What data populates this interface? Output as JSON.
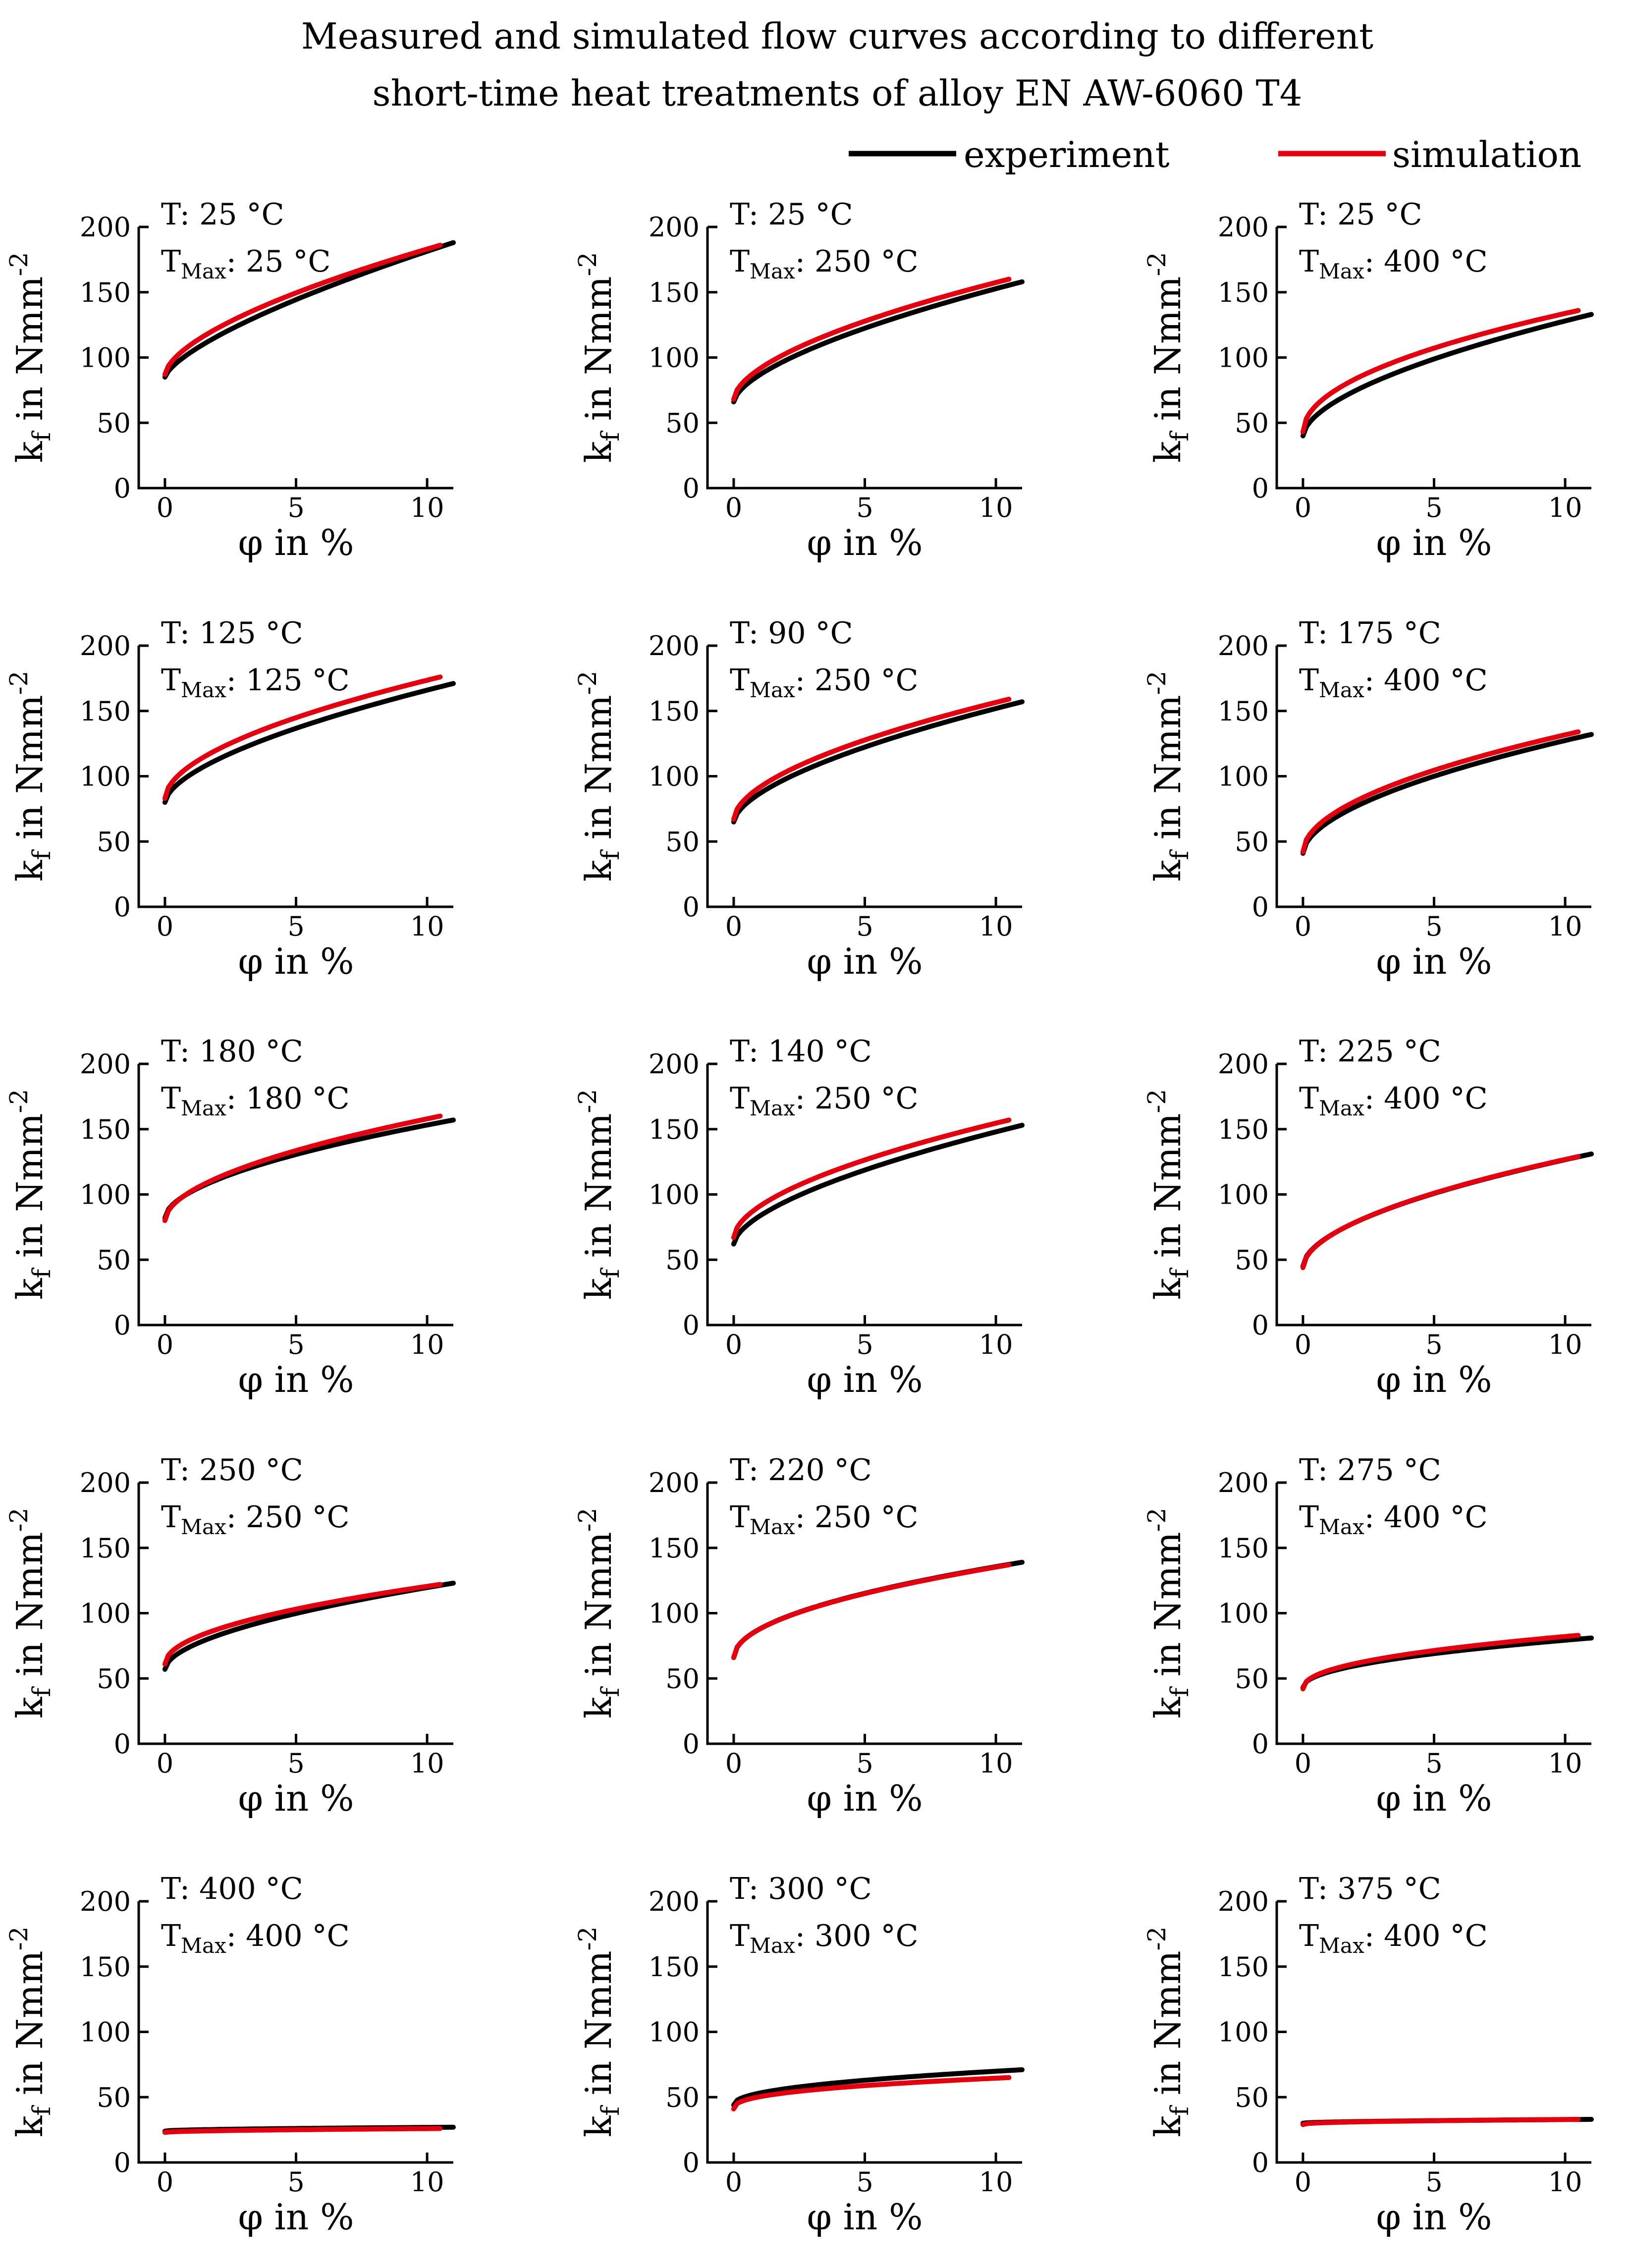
{
  "chart_data": {
    "type": "line",
    "title": [
      "Measured and simulated flow curves according to different",
      "short-time heat treatments of alloy EN AW-6060 T4"
    ],
    "legend": [
      {
        "name": "experiment",
        "color": "#000000"
      },
      {
        "name": "simulation",
        "color": "#e3000f"
      }
    ],
    "legend_position": "top-right",
    "xlabel": "φ in %",
    "ylabel": {
      "base": "k",
      "sub": "f",
      "text": " in Nmm",
      "sup": "-2"
    },
    "x_ticks": [
      "0",
      "5",
      "10"
    ],
    "y_ticks": [
      "0",
      "50",
      "100",
      "150",
      "200"
    ],
    "xlim": [
      -1,
      11
    ],
    "ylim": [
      0,
      200
    ],
    "grid": false,
    "rows": 5,
    "cols": 3,
    "panels": [
      {
        "T_label": "T: 25 °C",
        "tmax_prefix": "T",
        "tmax_sub": "Max",
        "tmax_value": ": 25 °C",
        "experiment": {
          "y0": 85,
          "y_end": 188,
          "x_end": 11,
          "shape": 0.7
        },
        "simulation": {
          "y0": 87,
          "y_end": 186,
          "x_end": 10.5,
          "shape": 0.62
        }
      },
      {
        "T_label": "T: 25 °C",
        "tmax_prefix": "T",
        "tmax_sub": "Max",
        "tmax_value": ": 250 °C",
        "experiment": {
          "y0": 66,
          "y_end": 158,
          "x_end": 11,
          "shape": 0.62
        },
        "simulation": {
          "y0": 68,
          "y_end": 160,
          "x_end": 10.5,
          "shape": 0.58
        }
      },
      {
        "T_label": "T: 25 °C",
        "tmax_prefix": "T",
        "tmax_sub": "Max",
        "tmax_value": ": 400 °C",
        "experiment": {
          "y0": 40,
          "y_end": 133,
          "x_end": 11,
          "shape": 0.58
        },
        "simulation": {
          "y0": 43,
          "y_end": 136,
          "x_end": 10.5,
          "shape": 0.5
        }
      },
      {
        "T_label": "T: 125 °C",
        "tmax_prefix": "T",
        "tmax_sub": "Max",
        "tmax_value": ": 125 °C",
        "experiment": {
          "y0": 80,
          "y_end": 171,
          "x_end": 11,
          "shape": 0.6
        },
        "simulation": {
          "y0": 83,
          "y_end": 176,
          "x_end": 10.5,
          "shape": 0.55
        }
      },
      {
        "T_label": "T: 90 °C",
        "tmax_prefix": "T",
        "tmax_sub": "Max",
        "tmax_value": ": 250 °C",
        "experiment": {
          "y0": 65,
          "y_end": 157,
          "x_end": 11,
          "shape": 0.6
        },
        "simulation": {
          "y0": 67,
          "y_end": 159,
          "x_end": 10.5,
          "shape": 0.56
        }
      },
      {
        "T_label": "T: 175 °C",
        "tmax_prefix": "T",
        "tmax_sub": "Max",
        "tmax_value": ": 400 °C",
        "experiment": {
          "y0": 41,
          "y_end": 132,
          "x_end": 11,
          "shape": 0.55
        },
        "simulation": {
          "y0": 42,
          "y_end": 134,
          "x_end": 10.5,
          "shape": 0.52
        }
      },
      {
        "T_label": "T: 180 °C",
        "tmax_prefix": "T",
        "tmax_sub": "Max",
        "tmax_value": ": 180 °C",
        "experiment": {
          "y0": 82,
          "y_end": 157,
          "x_end": 11,
          "shape": 0.55
        },
        "simulation": {
          "y0": 80,
          "y_end": 160,
          "x_end": 10.5,
          "shape": 0.54
        }
      },
      {
        "T_label": "T: 140 °C",
        "tmax_prefix": "T",
        "tmax_sub": "Max",
        "tmax_value": ": 250 °C",
        "experiment": {
          "y0": 62,
          "y_end": 153,
          "x_end": 11,
          "shape": 0.6
        },
        "simulation": {
          "y0": 67,
          "y_end": 157,
          "x_end": 10.5,
          "shape": 0.56
        }
      },
      {
        "T_label": "T: 225 °C",
        "tmax_prefix": "T",
        "tmax_sub": "Max",
        "tmax_value": ": 400 °C",
        "experiment": {
          "y0": 45,
          "y_end": 131,
          "x_end": 11,
          "shape": 0.55
        },
        "simulation": {
          "y0": 44,
          "y_end": 129,
          "x_end": 10.5,
          "shape": 0.54
        }
      },
      {
        "T_label": "T: 250 °C",
        "tmax_prefix": "T",
        "tmax_sub": "Max",
        "tmax_value": ": 250 °C",
        "experiment": {
          "y0": 57,
          "y_end": 123,
          "x_end": 11,
          "shape": 0.55
        },
        "simulation": {
          "y0": 61,
          "y_end": 122,
          "x_end": 10.5,
          "shape": 0.5
        }
      },
      {
        "T_label": "T: 220 °C",
        "tmax_prefix": "T",
        "tmax_sub": "Max",
        "tmax_value": ": 250 °C",
        "experiment": {
          "y0": 66,
          "y_end": 139,
          "x_end": 11,
          "shape": 0.5
        },
        "simulation": {
          "y0": 66,
          "y_end": 137,
          "x_end": 10.5,
          "shape": 0.5
        }
      },
      {
        "T_label": "T: 275 °C",
        "tmax_prefix": "T",
        "tmax_sub": "Max",
        "tmax_value": ": 400 °C",
        "experiment": {
          "y0": 43,
          "y_end": 81,
          "x_end": 11,
          "shape": 0.48
        },
        "simulation": {
          "y0": 42,
          "y_end": 83,
          "x_end": 10.5,
          "shape": 0.45
        }
      },
      {
        "T_label": "T: 400 °C",
        "tmax_prefix": "T",
        "tmax_sub": "Max",
        "tmax_value": ": 400 °C",
        "experiment": {
          "y0": 24,
          "y_end": 27,
          "x_end": 11,
          "shape": 0.5
        },
        "simulation": {
          "y0": 23,
          "y_end": 26,
          "x_end": 10.5,
          "shape": 0.5
        }
      },
      {
        "T_label": "T: 300 °C",
        "tmax_prefix": "T",
        "tmax_sub": "Max",
        "tmax_value": ": 300 °C",
        "experiment": {
          "y0": 44,
          "y_end": 71,
          "x_end": 11,
          "shape": 0.45
        },
        "simulation": {
          "y0": 41,
          "y_end": 65,
          "x_end": 10.5,
          "shape": 0.4
        }
      },
      {
        "T_label": "T: 375 °C",
        "tmax_prefix": "T",
        "tmax_sub": "Max",
        "tmax_value": ": 400 °C",
        "experiment": {
          "y0": 30,
          "y_end": 33,
          "x_end": 11,
          "shape": 0.5
        },
        "simulation": {
          "y0": 29,
          "y_end": 33,
          "x_end": 10.5,
          "shape": 0.4
        }
      }
    ]
  }
}
